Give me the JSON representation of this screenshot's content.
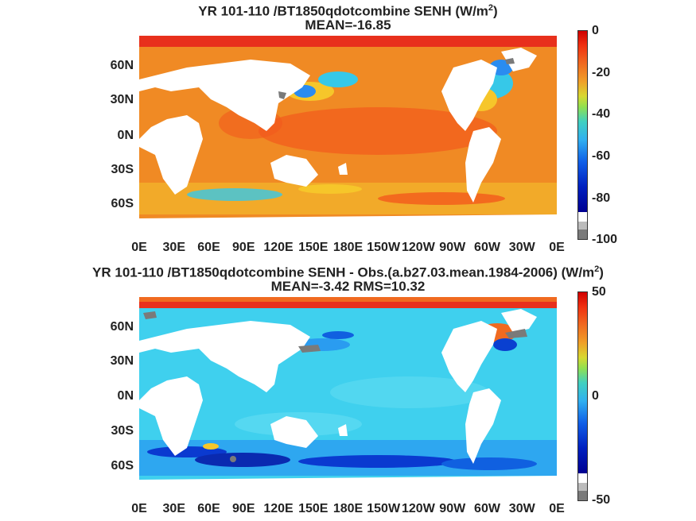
{
  "panels": [
    {
      "title_line1": "YR 101-110 /BT1850qdotcombine  SENH (W/m",
      "title_sup": "2",
      "title_close": ")",
      "title_line2": "MEAN=-16.85",
      "lat_labels": [
        "60N",
        "30N",
        "0N",
        "30S",
        "60S"
      ],
      "lon_labels": [
        "0E",
        "30E",
        "60E",
        "90E",
        "120E",
        "150E",
        "180E",
        "150W",
        "120W",
        "90W",
        "60W",
        "30W",
        "0E"
      ],
      "colorbar": {
        "labels": [
          "0",
          "-20",
          "-40",
          "-60",
          "-80",
          "-100"
        ],
        "min": -100,
        "max": 0
      },
      "dominant_ocean_color": "#f08a24"
    },
    {
      "title_line1": "YR 101-110 /BT1850qdotcombine SENH - Obs.(a.b27.03.mean.1984-2006) (W/m",
      "title_sup": "2",
      "title_close": ")",
      "title_line2": "MEAN=-3.42 RMS=10.32",
      "lat_labels": [
        "60N",
        "30N",
        "0N",
        "30S",
        "60S"
      ],
      "lon_labels": [
        "0E",
        "30E",
        "60E",
        "90E",
        "120E",
        "150E",
        "180E",
        "150W",
        "120W",
        "90W",
        "60W",
        "30W",
        "0E"
      ],
      "colorbar": {
        "labels": [
          "50",
          "0",
          "-50"
        ],
        "min": -50,
        "max": 50
      },
      "dominant_ocean_color": "#3fd0ee"
    }
  ],
  "colors": {
    "land": "#ffffff",
    "missing": "#7a7a7a"
  }
}
